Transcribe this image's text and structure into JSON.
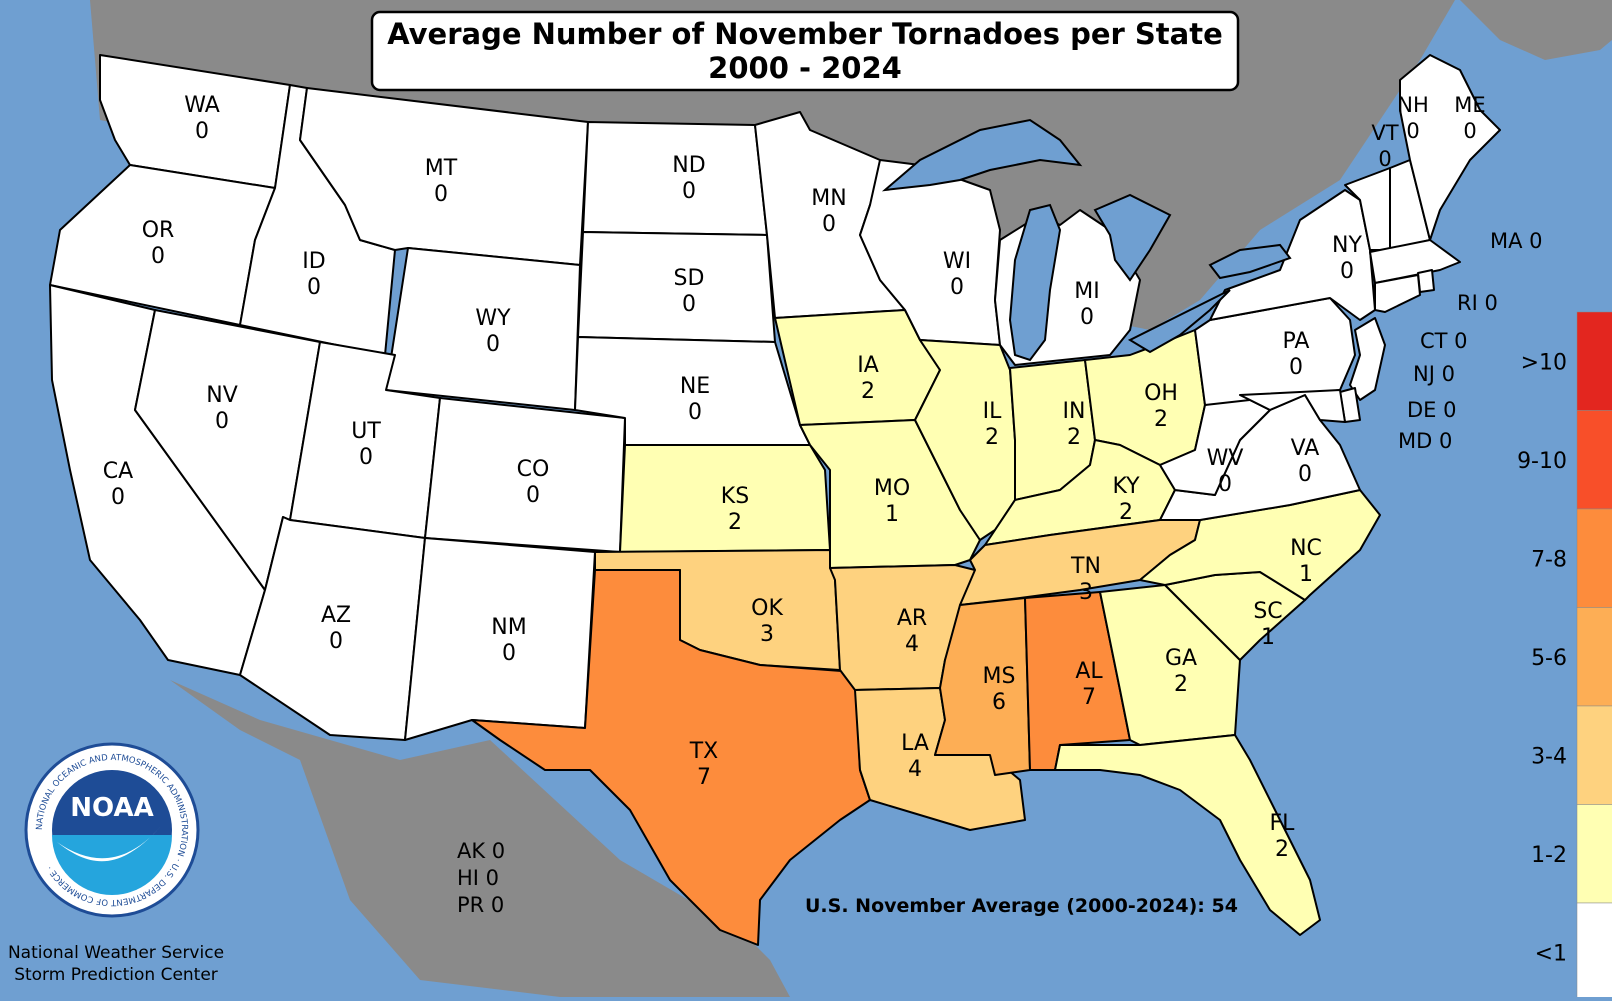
{
  "title": {
    "line1": "Average Number of November Tornadoes per State",
    "line2": "2000 - 2024"
  },
  "colors": {
    "ocean": "#6f9fd1",
    "land_outside": "#8a8a8a",
    "lakes": "#6f9fd1",
    "bin_lt1": "#ffffff",
    "bin_1_2": "#ffffb3",
    "bin_3_4": "#fed27f",
    "bin_5_6": "#fdae55",
    "bin_7_8": "#fd8c3c",
    "bin_9_10": "#f84f29",
    "bin_gt10": "#e3261f"
  },
  "legend": {
    "bins": [
      {
        "label": ">10",
        "color": "#e3261f"
      },
      {
        "label": "9-10",
        "color": "#f84f29"
      },
      {
        "label": "7-8",
        "color": "#fd8c3c"
      },
      {
        "label": "5-6",
        "color": "#fdae55"
      },
      {
        "label": "3-4",
        "color": "#fed27f"
      },
      {
        "label": "1-2",
        "color": "#ffffb3"
      },
      {
        "label": "<1",
        "color": "#ffffff"
      }
    ]
  },
  "states": [
    {
      "abbr": "WA",
      "value": "0"
    },
    {
      "abbr": "OR",
      "value": "0"
    },
    {
      "abbr": "CA",
      "value": "0"
    },
    {
      "abbr": "ID",
      "value": "0"
    },
    {
      "abbr": "NV",
      "value": "0"
    },
    {
      "abbr": "MT",
      "value": "0"
    },
    {
      "abbr": "WY",
      "value": "0"
    },
    {
      "abbr": "UT",
      "value": "0"
    },
    {
      "abbr": "AZ",
      "value": "0"
    },
    {
      "abbr": "CO",
      "value": "0"
    },
    {
      "abbr": "NM",
      "value": "0"
    },
    {
      "abbr": "ND",
      "value": "0"
    },
    {
      "abbr": "SD",
      "value": "0"
    },
    {
      "abbr": "NE",
      "value": "0"
    },
    {
      "abbr": "KS",
      "value": "2"
    },
    {
      "abbr": "OK",
      "value": "3"
    },
    {
      "abbr": "TX",
      "value": "7"
    },
    {
      "abbr": "MN",
      "value": "0"
    },
    {
      "abbr": "IA",
      "value": "2"
    },
    {
      "abbr": "MO",
      "value": "1"
    },
    {
      "abbr": "AR",
      "value": "4"
    },
    {
      "abbr": "LA",
      "value": "4"
    },
    {
      "abbr": "WI",
      "value": "0"
    },
    {
      "abbr": "IL",
      "value": "2"
    },
    {
      "abbr": "MI",
      "value": "0"
    },
    {
      "abbr": "IN",
      "value": "2"
    },
    {
      "abbr": "OH",
      "value": "2"
    },
    {
      "abbr": "KY",
      "value": "2"
    },
    {
      "abbr": "TN",
      "value": "3"
    },
    {
      "abbr": "MS",
      "value": "6"
    },
    {
      "abbr": "AL",
      "value": "7"
    },
    {
      "abbr": "GA",
      "value": "2"
    },
    {
      "abbr": "FL",
      "value": "2"
    },
    {
      "abbr": "SC",
      "value": "1"
    },
    {
      "abbr": "NC",
      "value": "1"
    },
    {
      "abbr": "VA",
      "value": "0"
    },
    {
      "abbr": "WV",
      "value": "0"
    },
    {
      "abbr": "PA",
      "value": "0"
    },
    {
      "abbr": "NY",
      "value": "0"
    },
    {
      "abbr": "VT",
      "value": "0"
    },
    {
      "abbr": "NH",
      "value": "0"
    },
    {
      "abbr": "ME",
      "value": "0"
    },
    {
      "abbr": "MA",
      "value": "0"
    },
    {
      "abbr": "RI",
      "value": "0"
    },
    {
      "abbr": "CT",
      "value": "0"
    },
    {
      "abbr": "NJ",
      "value": "0"
    },
    {
      "abbr": "DE",
      "value": "0"
    },
    {
      "abbr": "MD",
      "value": "0"
    }
  ],
  "others": {
    "ak": "AK 0",
    "hi": "HI 0",
    "pr": "PR 0"
  },
  "total_label": "U.S. November Average (2000-2024): 54",
  "logo": {
    "text": "NOAA",
    "ring_text": "NATIONAL OCEANIC AND ATMOSPHERIC ADMINISTRATION · U.S. DEPARTMENT OF COMMERCE ·"
  },
  "credit": {
    "line1": "National Weather Service",
    "line2": "Storm Prediction Center"
  }
}
